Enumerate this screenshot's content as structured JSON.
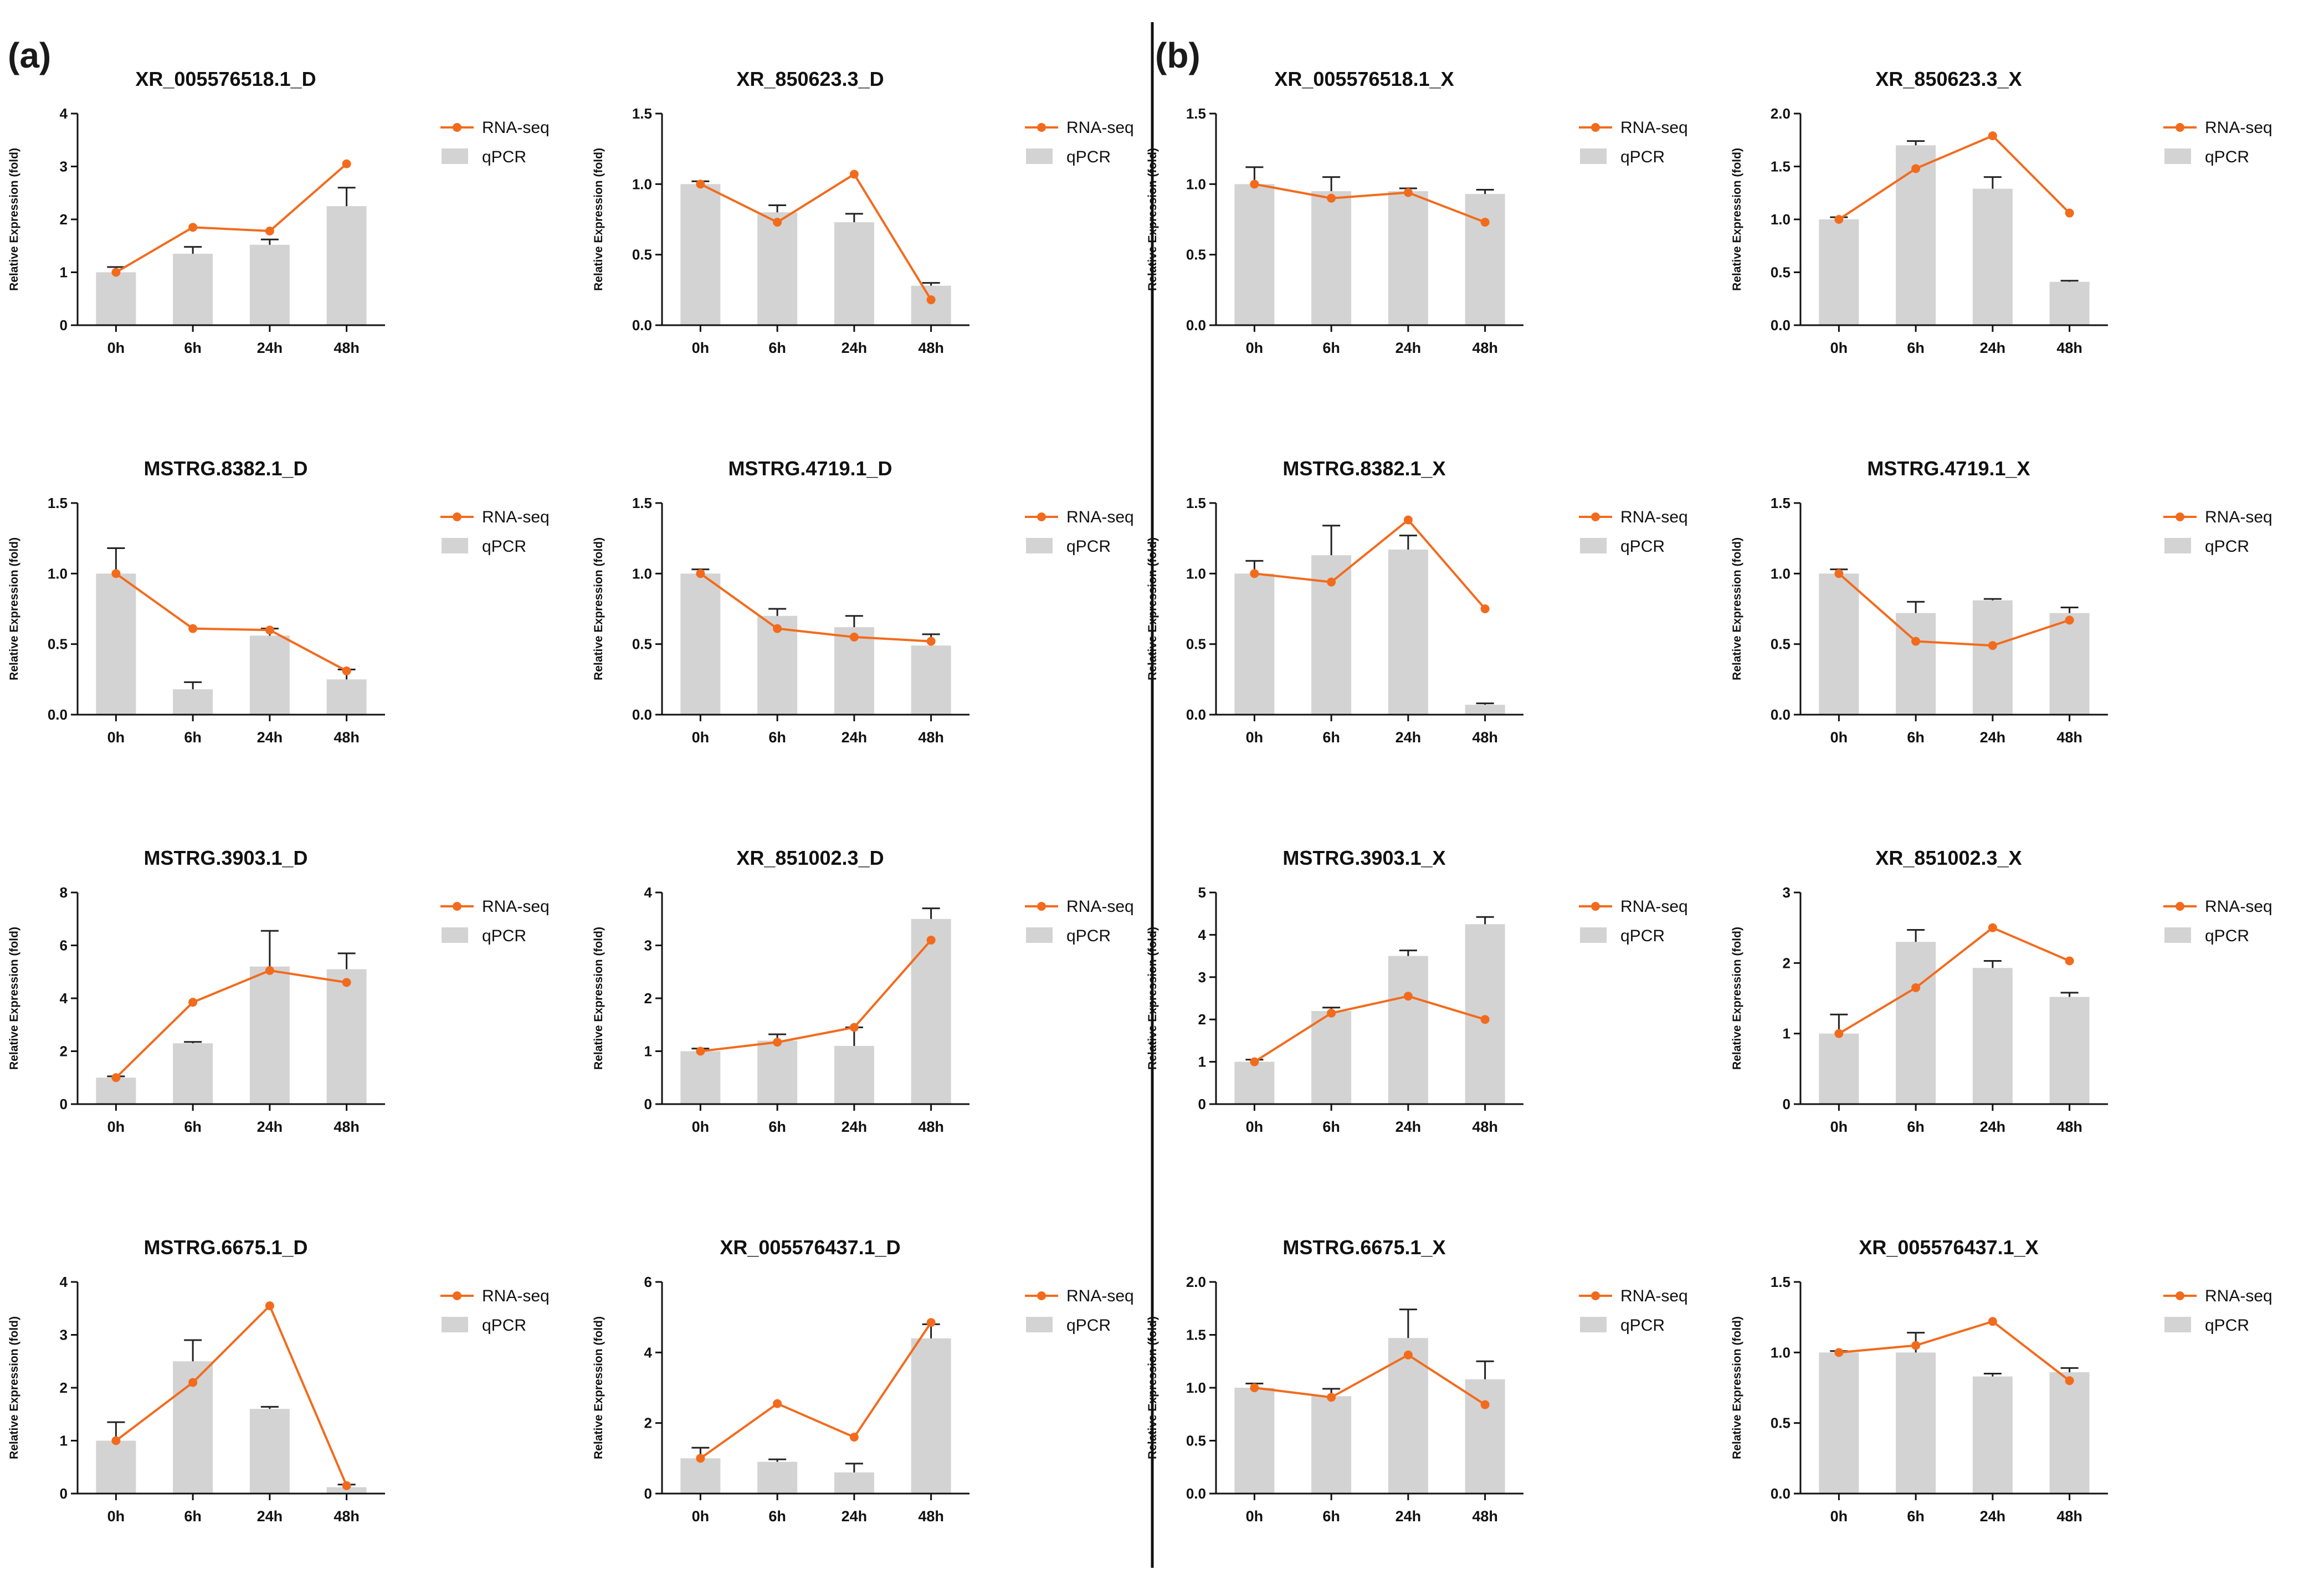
{
  "panel_labels": [
    "(a)",
    "(b)"
  ],
  "colors": {
    "rna_seq": "#f26b1d",
    "qpcr": "#d3d3d3",
    "axis": "#111111",
    "divider": "#111111"
  },
  "chart_data": [
    {
      "type": "bar",
      "title": "XR_005576518.1_D",
      "ylabel": "Relative Expression (fold)",
      "categories": [
        "0h",
        "6h",
        "24h",
        "48h"
      ],
      "ylim": [
        0,
        4
      ],
      "yticks": [
        "0",
        "1",
        "2",
        "3",
        "4"
      ],
      "legend": [
        "RNA-seq",
        "qPCR"
      ],
      "series": [
        {
          "name": "qPCR",
          "type": "bar",
          "values": [
            1.0,
            1.35,
            1.52,
            2.25
          ],
          "errors": [
            0.1,
            0.13,
            0.1,
            0.35
          ]
        },
        {
          "name": "RNA-seq",
          "type": "line",
          "values": [
            1.0,
            1.85,
            1.78,
            3.05
          ]
        }
      ]
    },
    {
      "type": "bar",
      "title": "XR_850623.3_D",
      "ylabel": "Relative Expression (fold)",
      "categories": [
        "0h",
        "6h",
        "24h",
        "48h"
      ],
      "ylim": [
        0,
        1.5
      ],
      "yticks": [
        "0.0",
        "0.5",
        "1.0",
        "1.5"
      ],
      "legend": [
        "RNA-seq",
        "qPCR"
      ],
      "series": [
        {
          "name": "qPCR",
          "type": "bar",
          "values": [
            1.0,
            0.8,
            0.73,
            0.28
          ],
          "errors": [
            0.02,
            0.05,
            0.06,
            0.02
          ]
        },
        {
          "name": "RNA-seq",
          "type": "line",
          "values": [
            1.0,
            0.73,
            1.07,
            0.18
          ]
        }
      ]
    },
    {
      "type": "bar",
      "title": "XR_005576518.1_X",
      "ylabel": "Relative Expression (fold)",
      "categories": [
        "0h",
        "6h",
        "24h",
        "48h"
      ],
      "ylim": [
        0,
        1.5
      ],
      "yticks": [
        "0.0",
        "0.5",
        "1.0",
        "1.5"
      ],
      "legend": [
        "RNA-seq",
        "qPCR"
      ],
      "series": [
        {
          "name": "qPCR",
          "type": "bar",
          "values": [
            1.0,
            0.95,
            0.95,
            0.93
          ],
          "errors": [
            0.12,
            0.1,
            0.02,
            0.03
          ]
        },
        {
          "name": "RNA-seq",
          "type": "line",
          "values": [
            1.0,
            0.9,
            0.94,
            0.73
          ]
        }
      ]
    },
    {
      "type": "bar",
      "title": "XR_850623.3_X",
      "ylabel": "Relative Expression (fold)",
      "categories": [
        "0h",
        "6h",
        "24h",
        "48h"
      ],
      "ylim": [
        0,
        2.0
      ],
      "yticks": [
        "0.0",
        "0.5",
        "1.0",
        "1.5",
        "2.0"
      ],
      "legend": [
        "RNA-seq",
        "qPCR"
      ],
      "series": [
        {
          "name": "qPCR",
          "type": "bar",
          "values": [
            1.0,
            1.7,
            1.29,
            0.41
          ],
          "errors": [
            0.02,
            0.04,
            0.11,
            0.01
          ]
        },
        {
          "name": "RNA-seq",
          "type": "line",
          "values": [
            1.0,
            1.48,
            1.79,
            1.06
          ]
        }
      ]
    },
    {
      "type": "bar",
      "title": "MSTRG.8382.1_D",
      "ylabel": "Relative Expression (fold)",
      "categories": [
        "0h",
        "6h",
        "24h",
        "48h"
      ],
      "ylim": [
        0,
        1.5
      ],
      "yticks": [
        "0.0",
        "0.5",
        "1.0",
        "1.5"
      ],
      "legend": [
        "RNA-seq",
        "qPCR"
      ],
      "series": [
        {
          "name": "qPCR",
          "type": "bar",
          "values": [
            1.0,
            0.18,
            0.56,
            0.25
          ],
          "errors": [
            0.18,
            0.05,
            0.05,
            0.07
          ]
        },
        {
          "name": "RNA-seq",
          "type": "line",
          "values": [
            1.0,
            0.61,
            0.6,
            0.31
          ]
        }
      ]
    },
    {
      "type": "bar",
      "title": "MSTRG.4719.1_D",
      "ylabel": "Relative Expression (fold)",
      "categories": [
        "0h",
        "6h",
        "24h",
        "48h"
      ],
      "ylim": [
        0,
        1.5
      ],
      "yticks": [
        "0.0",
        "0.5",
        "1.0",
        "1.5"
      ],
      "legend": [
        "RNA-seq",
        "qPCR"
      ],
      "series": [
        {
          "name": "qPCR",
          "type": "bar",
          "values": [
            1.0,
            0.7,
            0.62,
            0.49
          ],
          "errors": [
            0.03,
            0.05,
            0.08,
            0.08
          ]
        },
        {
          "name": "RNA-seq",
          "type": "line",
          "values": [
            1.0,
            0.61,
            0.55,
            0.52
          ]
        }
      ]
    },
    {
      "type": "bar",
      "title": "MSTRG.8382.1_X",
      "ylabel": "Relative Expression (fold)",
      "categories": [
        "0h",
        "6h",
        "24h",
        "48h"
      ],
      "ylim": [
        0,
        1.5
      ],
      "yticks": [
        "0.0",
        "0.5",
        "1.0",
        "1.5"
      ],
      "legend": [
        "RNA-seq",
        "qPCR"
      ],
      "series": [
        {
          "name": "qPCR",
          "type": "bar",
          "values": [
            1.0,
            1.13,
            1.17,
            0.07
          ],
          "errors": [
            0.09,
            0.21,
            0.1,
            0.01
          ]
        },
        {
          "name": "RNA-seq",
          "type": "line",
          "values": [
            1.0,
            0.94,
            1.38,
            0.75
          ]
        }
      ]
    },
    {
      "type": "bar",
      "title": "MSTRG.4719.1_X",
      "ylabel": "Relative Expression (fold)",
      "categories": [
        "0h",
        "6h",
        "24h",
        "48h"
      ],
      "ylim": [
        0,
        1.5
      ],
      "yticks": [
        "0.0",
        "0.5",
        "1.0",
        "1.5"
      ],
      "legend": [
        "RNA-seq",
        "qPCR"
      ],
      "series": [
        {
          "name": "qPCR",
          "type": "bar",
          "values": [
            1.0,
            0.72,
            0.81,
            0.72
          ],
          "errors": [
            0.03,
            0.08,
            0.01,
            0.04
          ]
        },
        {
          "name": "RNA-seq",
          "type": "line",
          "values": [
            1.0,
            0.52,
            0.49,
            0.67
          ]
        }
      ]
    },
    {
      "type": "bar",
      "title": "MSTRG.3903.1_D",
      "ylabel": "Relative Expression (fold)",
      "categories": [
        "0h",
        "6h",
        "24h",
        "48h"
      ],
      "ylim": [
        0,
        8
      ],
      "yticks": [
        "0",
        "2",
        "4",
        "6",
        "8"
      ],
      "legend": [
        "RNA-seq",
        "qPCR"
      ],
      "series": [
        {
          "name": "qPCR",
          "type": "bar",
          "values": [
            1.0,
            2.3,
            5.2,
            5.1
          ],
          "errors": [
            0.05,
            0.05,
            1.35,
            0.6
          ]
        },
        {
          "name": "RNA-seq",
          "type": "line",
          "values": [
            1.0,
            3.85,
            5.05,
            4.6
          ]
        }
      ]
    },
    {
      "type": "bar",
      "title": "XR_851002.3_D",
      "ylabel": "Relative Expression (fold)",
      "categories": [
        "0h",
        "6h",
        "24h",
        "48h"
      ],
      "ylim": [
        0,
        4
      ],
      "yticks": [
        "0",
        "1",
        "2",
        "3",
        "4"
      ],
      "legend": [
        "RNA-seq",
        "qPCR"
      ],
      "series": [
        {
          "name": "qPCR",
          "type": "bar",
          "values": [
            1.0,
            1.2,
            1.1,
            3.5
          ],
          "errors": [
            0.05,
            0.12,
            0.35,
            0.2
          ]
        },
        {
          "name": "RNA-seq",
          "type": "line",
          "values": [
            1.0,
            1.17,
            1.45,
            3.1
          ]
        }
      ]
    },
    {
      "type": "bar",
      "title": "MSTRG.3903.1_X",
      "ylabel": "Relative Expression (fold)",
      "categories": [
        "0h",
        "6h",
        "24h",
        "48h"
      ],
      "ylim": [
        0,
        5
      ],
      "yticks": [
        "0",
        "1",
        "2",
        "3",
        "4",
        "5"
      ],
      "legend": [
        "RNA-seq",
        "qPCR"
      ],
      "series": [
        {
          "name": "qPCR",
          "type": "bar",
          "values": [
            1.0,
            2.2,
            3.5,
            4.25
          ],
          "errors": [
            0.05,
            0.08,
            0.13,
            0.17
          ]
        },
        {
          "name": "RNA-seq",
          "type": "line",
          "values": [
            1.0,
            2.15,
            2.55,
            2.0
          ]
        }
      ]
    },
    {
      "type": "bar",
      "title": "XR_851002.3_X",
      "ylabel": "Relative Expression (fold)",
      "categories": [
        "0h",
        "6h",
        "24h",
        "48h"
      ],
      "ylim": [
        0,
        3
      ],
      "yticks": [
        "0",
        "1",
        "2",
        "3"
      ],
      "legend": [
        "RNA-seq",
        "qPCR"
      ],
      "series": [
        {
          "name": "qPCR",
          "type": "bar",
          "values": [
            1.0,
            2.3,
            1.93,
            1.52
          ],
          "errors": [
            0.27,
            0.17,
            0.1,
            0.06
          ]
        },
        {
          "name": "RNA-seq",
          "type": "line",
          "values": [
            1.0,
            1.65,
            2.5,
            2.03
          ]
        }
      ]
    },
    {
      "type": "bar",
      "title": "MSTRG.6675.1_D",
      "ylabel": "Relative Expression (fold)",
      "categories": [
        "0h",
        "6h",
        "24h",
        "48h"
      ],
      "ylim": [
        0,
        4
      ],
      "yticks": [
        "0",
        "1",
        "2",
        "3",
        "4"
      ],
      "legend": [
        "RNA-seq",
        "qPCR"
      ],
      "series": [
        {
          "name": "qPCR",
          "type": "bar",
          "values": [
            1.0,
            2.5,
            1.6,
            0.12
          ],
          "errors": [
            0.35,
            0.4,
            0.04,
            0.05
          ]
        },
        {
          "name": "RNA-seq",
          "type": "line",
          "values": [
            1.0,
            2.1,
            3.55,
            0.15
          ]
        }
      ]
    },
    {
      "type": "bar",
      "title": "XR_005576437.1_D",
      "ylabel": "Relative Expression (fold)",
      "categories": [
        "0h",
        "6h",
        "24h",
        "48h"
      ],
      "ylim": [
        0,
        6
      ],
      "yticks": [
        "0",
        "2",
        "4",
        "6"
      ],
      "legend": [
        "RNA-seq",
        "qPCR"
      ],
      "series": [
        {
          "name": "qPCR",
          "type": "bar",
          "values": [
            1.0,
            0.9,
            0.6,
            4.4
          ],
          "errors": [
            0.3,
            0.07,
            0.25,
            0.4
          ]
        },
        {
          "name": "RNA-seq",
          "type": "line",
          "values": [
            1.0,
            2.55,
            1.6,
            4.85
          ]
        }
      ]
    },
    {
      "type": "bar",
      "title": "MSTRG.6675.1_X",
      "ylabel": "Relative Expression (fold)",
      "categories": [
        "0h",
        "6h",
        "24h",
        "48h"
      ],
      "ylim": [
        0,
        2.0
      ],
      "yticks": [
        "0.0",
        "0.5",
        "1.0",
        "1.5",
        "2.0"
      ],
      "legend": [
        "RNA-seq",
        "qPCR"
      ],
      "series": [
        {
          "name": "qPCR",
          "type": "bar",
          "values": [
            1.0,
            0.92,
            1.47,
            1.08
          ],
          "errors": [
            0.04,
            0.07,
            0.27,
            0.17
          ]
        },
        {
          "name": "RNA-seq",
          "type": "line",
          "values": [
            1.0,
            0.91,
            1.31,
            0.84
          ]
        }
      ]
    },
    {
      "type": "bar",
      "title": "XR_005576437.1_X",
      "ylabel": "Relative Expression (fold)",
      "categories": [
        "0h",
        "6h",
        "24h",
        "48h"
      ],
      "ylim": [
        0,
        1.5
      ],
      "yticks": [
        "0.0",
        "0.5",
        "1.0",
        "1.5"
      ],
      "legend": [
        "RNA-seq",
        "qPCR"
      ],
      "series": [
        {
          "name": "qPCR",
          "type": "bar",
          "values": [
            1.0,
            1.0,
            0.83,
            0.86
          ],
          "errors": [
            0.01,
            0.14,
            0.02,
            0.03
          ]
        },
        {
          "name": "RNA-seq",
          "type": "line",
          "values": [
            1.0,
            1.05,
            1.22,
            0.8
          ]
        }
      ]
    }
  ]
}
